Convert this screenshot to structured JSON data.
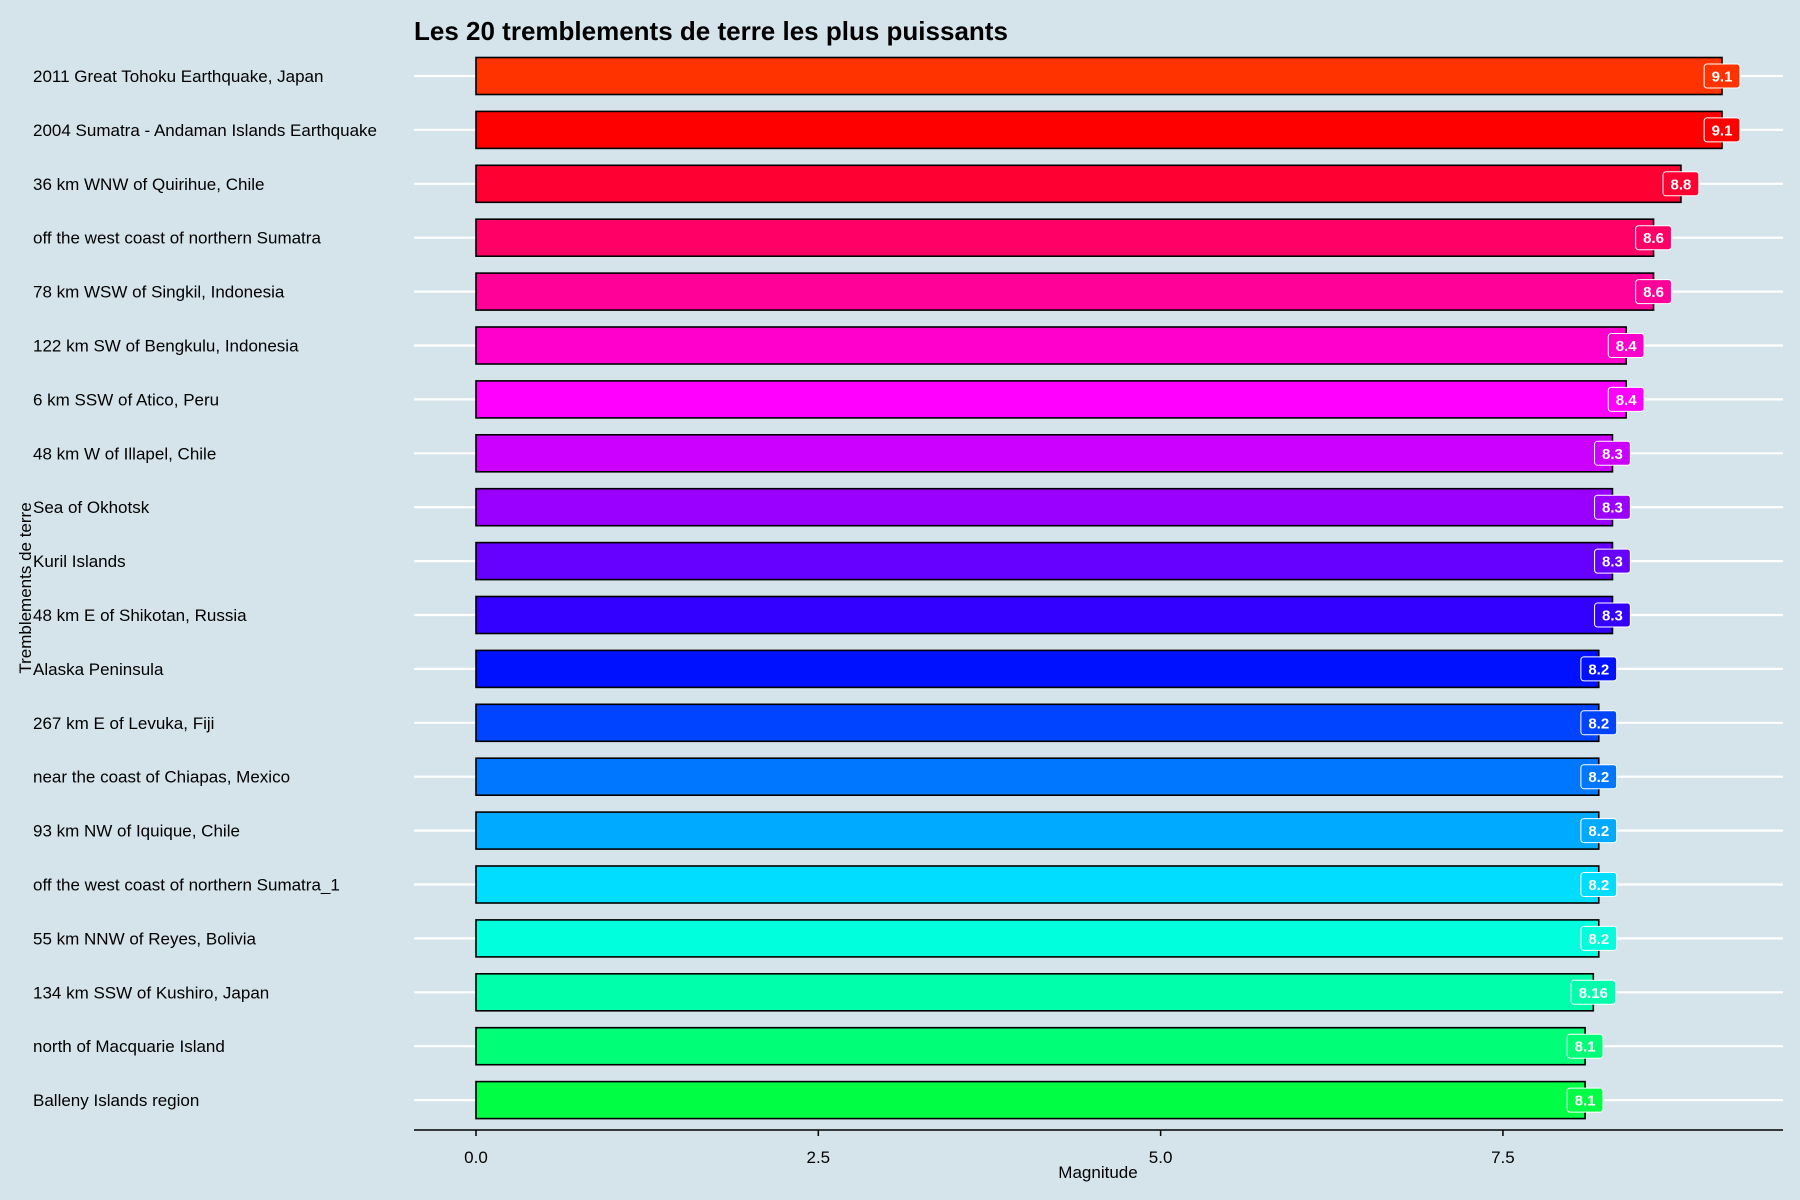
{
  "chart_data": {
    "type": "bar",
    "orientation": "horizontal",
    "title": "Les 20 tremblements de terre les plus puissants",
    "xlabel": "Magnitude",
    "ylabel": "Tremblements de terre",
    "xlim": [
      0,
      9.1
    ],
    "xticks": [
      0,
      2.5,
      5,
      7.5
    ],
    "xtick_labels": [
      "0.0",
      "2.5",
      "5.0",
      "7.5"
    ],
    "grid": "horizontal major lines only",
    "legend": "none",
    "categories": [
      "2011 Great Tohoku Earthquake, Japan",
      "2004 Sumatra - Andaman Islands Earthquake",
      "36 km WNW of Quirihue, Chile",
      "off the west coast of northern Sumatra",
      "78 km WSW of Singkil, Indonesia",
      "122 km SW of Bengkulu, Indonesia",
      "6 km SSW of Atico, Peru",
      "48 km W of Illapel, Chile",
      "Sea of Okhotsk",
      "Kuril Islands",
      "48 km E of Shikotan, Russia",
      "Alaska Peninsula",
      "267 km E of Levuka, Fiji",
      "near the coast of Chiapas, Mexico",
      "93 km NW of Iquique, Chile",
      "off the west coast of northern Sumatra_1",
      "55 km NNW of Reyes, Bolivia",
      "134 km SSW of Kushiro, Japan",
      "north of Macquarie Island",
      "Balleny Islands region"
    ],
    "values": [
      9.1,
      9.1,
      8.8,
      8.6,
      8.6,
      8.4,
      8.4,
      8.3,
      8.3,
      8.3,
      8.3,
      8.2,
      8.2,
      8.2,
      8.2,
      8.2,
      8.2,
      8.16,
      8.1,
      8.1
    ],
    "value_labels": [
      "9.1",
      "9.1",
      "8.8",
      "8.6",
      "8.6",
      "8.4",
      "8.4",
      "8.3",
      "8.3",
      "8.3",
      "8.3",
      "8.2",
      "8.2",
      "8.2",
      "8.2",
      "8.2",
      "8.2",
      "8.16",
      "8.1",
      "8.1"
    ],
    "colors": [
      "#ff3300",
      "#ff0000",
      "#ff0033",
      "#ff0066",
      "#ff0099",
      "#ff00cc",
      "#ff00ff",
      "#cc00ff",
      "#9900ff",
      "#6600ff",
      "#3300ff",
      "#0011ff",
      "#0044ff",
      "#0077ff",
      "#00aaff",
      "#00ddff",
      "#00ffdd",
      "#00ffaa",
      "#00ff77",
      "#00ff44"
    ]
  }
}
